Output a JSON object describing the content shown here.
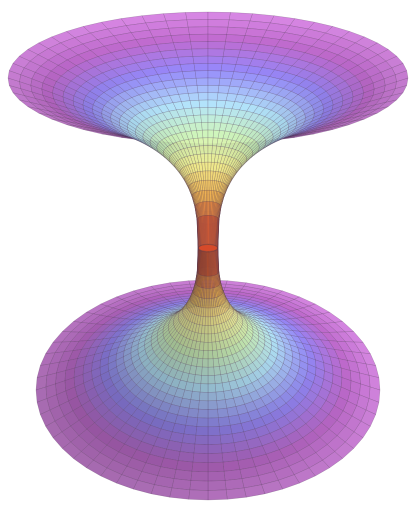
{
  "figure": {
    "subject": "wormhole-surface",
    "colors": {
      "background": "#ffffff",
      "rim": "#b85cc8",
      "rim_light": "#d37ee0",
      "blue": "#8a7cf5",
      "cyan": "#a9ddf6",
      "green": "#c8f0b0",
      "yellow": "#f1ec8c",
      "orange": "#f0b450",
      "red": "#d64a2a",
      "mesh_line": "#4a3050"
    }
  }
}
